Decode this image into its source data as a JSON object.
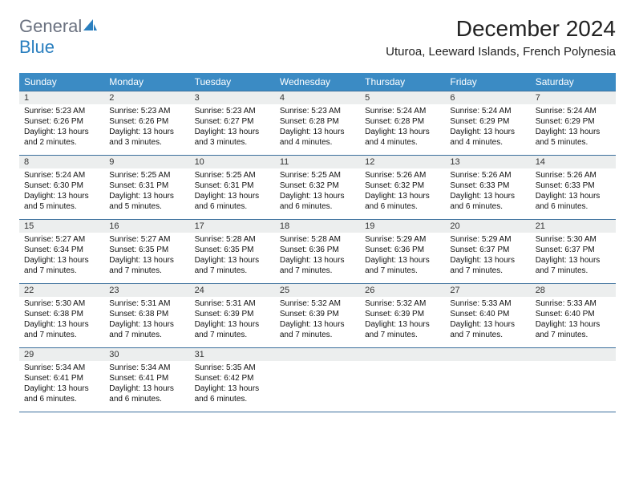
{
  "logo": {
    "part1": "General",
    "part2": "Blue"
  },
  "title": "December 2024",
  "location": "Uturoa, Leeward Islands, French Polynesia",
  "colors": {
    "header_bg": "#3b8bc4",
    "header_text": "#ffffff",
    "row_border": "#3b6f9c",
    "daynum_bg": "#eceeee",
    "text": "#000000",
    "logo_gray": "#6b7280",
    "logo_blue": "#2a7fbf"
  },
  "day_names": [
    "Sunday",
    "Monday",
    "Tuesday",
    "Wednesday",
    "Thursday",
    "Friday",
    "Saturday"
  ],
  "weeks": [
    [
      {
        "n": "1",
        "sr": "Sunrise: 5:23 AM",
        "ss": "Sunset: 6:26 PM",
        "dl": "Daylight: 13 hours and 2 minutes."
      },
      {
        "n": "2",
        "sr": "Sunrise: 5:23 AM",
        "ss": "Sunset: 6:26 PM",
        "dl": "Daylight: 13 hours and 3 minutes."
      },
      {
        "n": "3",
        "sr": "Sunrise: 5:23 AM",
        "ss": "Sunset: 6:27 PM",
        "dl": "Daylight: 13 hours and 3 minutes."
      },
      {
        "n": "4",
        "sr": "Sunrise: 5:23 AM",
        "ss": "Sunset: 6:28 PM",
        "dl": "Daylight: 13 hours and 4 minutes."
      },
      {
        "n": "5",
        "sr": "Sunrise: 5:24 AM",
        "ss": "Sunset: 6:28 PM",
        "dl": "Daylight: 13 hours and 4 minutes."
      },
      {
        "n": "6",
        "sr": "Sunrise: 5:24 AM",
        "ss": "Sunset: 6:29 PM",
        "dl": "Daylight: 13 hours and 4 minutes."
      },
      {
        "n": "7",
        "sr": "Sunrise: 5:24 AM",
        "ss": "Sunset: 6:29 PM",
        "dl": "Daylight: 13 hours and 5 minutes."
      }
    ],
    [
      {
        "n": "8",
        "sr": "Sunrise: 5:24 AM",
        "ss": "Sunset: 6:30 PM",
        "dl": "Daylight: 13 hours and 5 minutes."
      },
      {
        "n": "9",
        "sr": "Sunrise: 5:25 AM",
        "ss": "Sunset: 6:31 PM",
        "dl": "Daylight: 13 hours and 5 minutes."
      },
      {
        "n": "10",
        "sr": "Sunrise: 5:25 AM",
        "ss": "Sunset: 6:31 PM",
        "dl": "Daylight: 13 hours and 6 minutes."
      },
      {
        "n": "11",
        "sr": "Sunrise: 5:25 AM",
        "ss": "Sunset: 6:32 PM",
        "dl": "Daylight: 13 hours and 6 minutes."
      },
      {
        "n": "12",
        "sr": "Sunrise: 5:26 AM",
        "ss": "Sunset: 6:32 PM",
        "dl": "Daylight: 13 hours and 6 minutes."
      },
      {
        "n": "13",
        "sr": "Sunrise: 5:26 AM",
        "ss": "Sunset: 6:33 PM",
        "dl": "Daylight: 13 hours and 6 minutes."
      },
      {
        "n": "14",
        "sr": "Sunrise: 5:26 AM",
        "ss": "Sunset: 6:33 PM",
        "dl": "Daylight: 13 hours and 6 minutes."
      }
    ],
    [
      {
        "n": "15",
        "sr": "Sunrise: 5:27 AM",
        "ss": "Sunset: 6:34 PM",
        "dl": "Daylight: 13 hours and 7 minutes."
      },
      {
        "n": "16",
        "sr": "Sunrise: 5:27 AM",
        "ss": "Sunset: 6:35 PM",
        "dl": "Daylight: 13 hours and 7 minutes."
      },
      {
        "n": "17",
        "sr": "Sunrise: 5:28 AM",
        "ss": "Sunset: 6:35 PM",
        "dl": "Daylight: 13 hours and 7 minutes."
      },
      {
        "n": "18",
        "sr": "Sunrise: 5:28 AM",
        "ss": "Sunset: 6:36 PM",
        "dl": "Daylight: 13 hours and 7 minutes."
      },
      {
        "n": "19",
        "sr": "Sunrise: 5:29 AM",
        "ss": "Sunset: 6:36 PM",
        "dl": "Daylight: 13 hours and 7 minutes."
      },
      {
        "n": "20",
        "sr": "Sunrise: 5:29 AM",
        "ss": "Sunset: 6:37 PM",
        "dl": "Daylight: 13 hours and 7 minutes."
      },
      {
        "n": "21",
        "sr": "Sunrise: 5:30 AM",
        "ss": "Sunset: 6:37 PM",
        "dl": "Daylight: 13 hours and 7 minutes."
      }
    ],
    [
      {
        "n": "22",
        "sr": "Sunrise: 5:30 AM",
        "ss": "Sunset: 6:38 PM",
        "dl": "Daylight: 13 hours and 7 minutes."
      },
      {
        "n": "23",
        "sr": "Sunrise: 5:31 AM",
        "ss": "Sunset: 6:38 PM",
        "dl": "Daylight: 13 hours and 7 minutes."
      },
      {
        "n": "24",
        "sr": "Sunrise: 5:31 AM",
        "ss": "Sunset: 6:39 PM",
        "dl": "Daylight: 13 hours and 7 minutes."
      },
      {
        "n": "25",
        "sr": "Sunrise: 5:32 AM",
        "ss": "Sunset: 6:39 PM",
        "dl": "Daylight: 13 hours and 7 minutes."
      },
      {
        "n": "26",
        "sr": "Sunrise: 5:32 AM",
        "ss": "Sunset: 6:39 PM",
        "dl": "Daylight: 13 hours and 7 minutes."
      },
      {
        "n": "27",
        "sr": "Sunrise: 5:33 AM",
        "ss": "Sunset: 6:40 PM",
        "dl": "Daylight: 13 hours and 7 minutes."
      },
      {
        "n": "28",
        "sr": "Sunrise: 5:33 AM",
        "ss": "Sunset: 6:40 PM",
        "dl": "Daylight: 13 hours and 7 minutes."
      }
    ],
    [
      {
        "n": "29",
        "sr": "Sunrise: 5:34 AM",
        "ss": "Sunset: 6:41 PM",
        "dl": "Daylight: 13 hours and 6 minutes."
      },
      {
        "n": "30",
        "sr": "Sunrise: 5:34 AM",
        "ss": "Sunset: 6:41 PM",
        "dl": "Daylight: 13 hours and 6 minutes."
      },
      {
        "n": "31",
        "sr": "Sunrise: 5:35 AM",
        "ss": "Sunset: 6:42 PM",
        "dl": "Daylight: 13 hours and 6 minutes."
      },
      null,
      null,
      null,
      null
    ]
  ]
}
